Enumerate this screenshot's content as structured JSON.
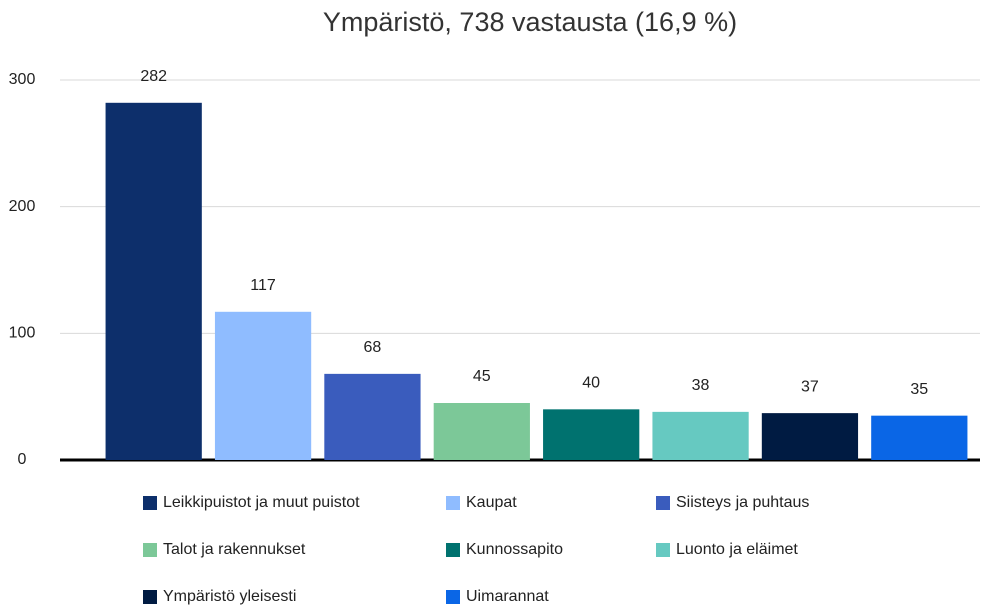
{
  "chart_data": {
    "type": "bar",
    "title": "Ympäristö, 738 vastausta (16,9 %)",
    "categories": [
      "Leikkipuistot ja muut puistot",
      "Kaupat",
      "Siisteys ja puhtaus",
      "Talot ja rakennukset",
      "Kunnossapito",
      "Luonto ja eläimet",
      "Ympäristö yleisesti",
      "Uimarannat"
    ],
    "values": [
      282,
      117,
      68,
      45,
      40,
      38,
      37,
      35
    ],
    "colors": [
      "#0d2f6b",
      "#8fbcff",
      "#3a5cbd",
      "#7cc898",
      "#00726f",
      "#66c9c1",
      "#001b42",
      "#0a66e6"
    ],
    "ylim": [
      0,
      300
    ],
    "yticks": [
      0,
      100,
      200,
      300
    ],
    "grid": true,
    "legend": "bottom"
  }
}
